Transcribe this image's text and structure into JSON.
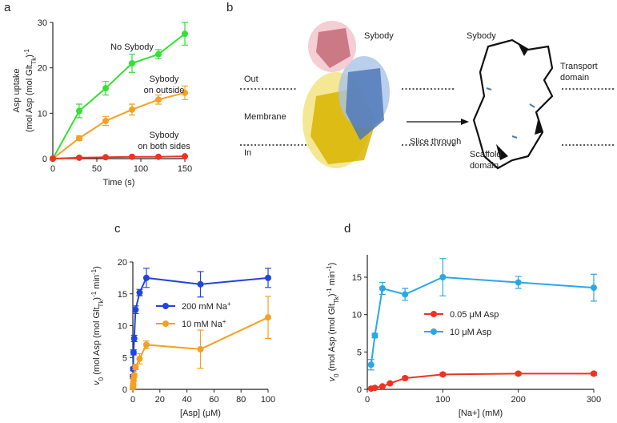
{
  "panel_b": {
    "panel": "b",
    "out": "Out",
    "membrane": "Membrane",
    "in": "In",
    "sybody_left": "Sybody",
    "arrow_label": "Slice through",
    "sybody_right": "Sybody",
    "transport": [
      "Transport",
      "domain"
    ],
    "scaffold": [
      "Scaffold",
      "domain"
    ]
  },
  "chart_data": [
    {
      "type": "scatter",
      "panel": "a",
      "xlabel": "Time (s)",
      "ylabel": [
        [
          "Asp uptake"
        ],
        [
          "(mol Asp (mol Glt",
          {
            "sub": "Tk"
          },
          ")",
          {
            "sup": "-1"
          }
        ]
      ],
      "xlim": [
        0,
        150
      ],
      "ylim": [
        0,
        30
      ],
      "xticks": [
        0,
        50,
        100,
        150
      ],
      "yticks": [
        0,
        10,
        20,
        30
      ],
      "annotations": [
        [
          "No Sybody"
        ],
        [
          "Sybody",
          "on outside"
        ],
        [
          "Sybody",
          "on both sides"
        ]
      ],
      "series": [
        {
          "color": "#33e033",
          "x": [
            0,
            30,
            60,
            90,
            120,
            150
          ],
          "values": [
            0,
            10.5,
            15.5,
            21,
            23,
            27.5
          ],
          "errors": [
            0,
            1.5,
            1.5,
            2,
            1,
            2.5
          ]
        },
        {
          "color": "#f5a023",
          "x": [
            0,
            30,
            60,
            90,
            120,
            150
          ],
          "values": [
            0,
            4.5,
            8.3,
            10.8,
            13,
            14.5
          ],
          "errors": [
            0,
            0.5,
            1,
            1.2,
            1,
            1.5
          ]
        },
        {
          "color": "#ee3322",
          "x": [
            0,
            30,
            60,
            90,
            120,
            150
          ],
          "values": [
            0,
            0.2,
            0.3,
            0.4,
            0.4,
            0.5
          ],
          "errors": [
            0,
            0.1,
            0.1,
            0.1,
            0.1,
            0.1
          ]
        }
      ]
    },
    {
      "type": "scatter",
      "panel": "c",
      "xlabel": "[Asp] (μM)",
      "ylabel": [
        [
          {
            "i": "v"
          },
          {
            "sub": "0"
          },
          " (mol Asp (mol Glt",
          {
            "sub": "Tk"
          },
          ")",
          {
            "sup": "-1"
          },
          " min",
          {
            "sup": "-1"
          },
          ")"
        ]
      ],
      "xlim": [
        0,
        100
      ],
      "ylim": [
        0,
        20
      ],
      "xticks": [
        0,
        20,
        40,
        60,
        80,
        100
      ],
      "yticks": [
        0,
        5,
        10,
        15,
        20
      ],
      "series": [
        {
          "name": [
            "200 mM Na",
            {
              "sup": "+"
            }
          ],
          "color": "#2244dd",
          "x": [
            0.1,
            0.25,
            0.5,
            1,
            2,
            5,
            10,
            50,
            100
          ],
          "values": [
            2,
            3.2,
            5.8,
            8,
            12.5,
            15.2,
            17.5,
            16.5,
            17.5
          ],
          "errors": [
            0.3,
            0.3,
            0.4,
            0.5,
            0.6,
            0.5,
            1.5,
            2,
            1.5
          ]
        },
        {
          "name": [
            "10 mM Na",
            {
              "sup": "+"
            }
          ],
          "color": "#f5a023",
          "x": [
            0.1,
            0.25,
            0.5,
            1,
            2,
            5,
            10,
            50,
            100
          ],
          "values": [
            0.3,
            0.8,
            1.5,
            2.2,
            3.5,
            4.8,
            7,
            6.3,
            11.3
          ],
          "errors": [
            0.2,
            0.2,
            0.3,
            0.3,
            0.4,
            0.8,
            0.6,
            3,
            3.3
          ]
        }
      ]
    },
    {
      "type": "scatter",
      "panel": "d",
      "xlabel": "[Na+] (mM)",
      "ylabel": [
        [
          {
            "i": "v"
          },
          {
            "sub": "0"
          },
          " (mol Asp (mol Glt",
          {
            "sub": "Tk"
          },
          ")",
          {
            "sup": "-1"
          },
          " min",
          {
            "sup": "-1"
          },
          ")"
        ]
      ],
      "xlim": [
        0,
        300
      ],
      "ylim": [
        0,
        18
      ],
      "xticks": [
        0,
        100,
        200,
        300
      ],
      "yticks": [
        0,
        5,
        10,
        15
      ],
      "series": [
        {
          "name": [
            "0.05 μM Asp"
          ],
          "color": "#ee3322",
          "x": [
            5,
            10,
            20,
            30,
            50,
            100,
            200,
            300
          ],
          "values": [
            0.1,
            0.2,
            0.4,
            0.8,
            1.5,
            2,
            2.1,
            2.1
          ],
          "errors": [
            0.05,
            0.05,
            0.1,
            0.1,
            0.2,
            0.2,
            0.2,
            0.2
          ]
        },
        {
          "name": [
            "10 μM Asp"
          ],
          "color": "#29a8e8",
          "x": [
            5,
            10,
            20,
            50,
            100,
            200,
            300
          ],
          "values": [
            3.3,
            7.2,
            13.5,
            12.7,
            15,
            14.3,
            13.6
          ],
          "errors": [
            0.7,
            0.3,
            0.8,
            0.8,
            2.5,
            0.8,
            1.8
          ]
        }
      ]
    }
  ]
}
